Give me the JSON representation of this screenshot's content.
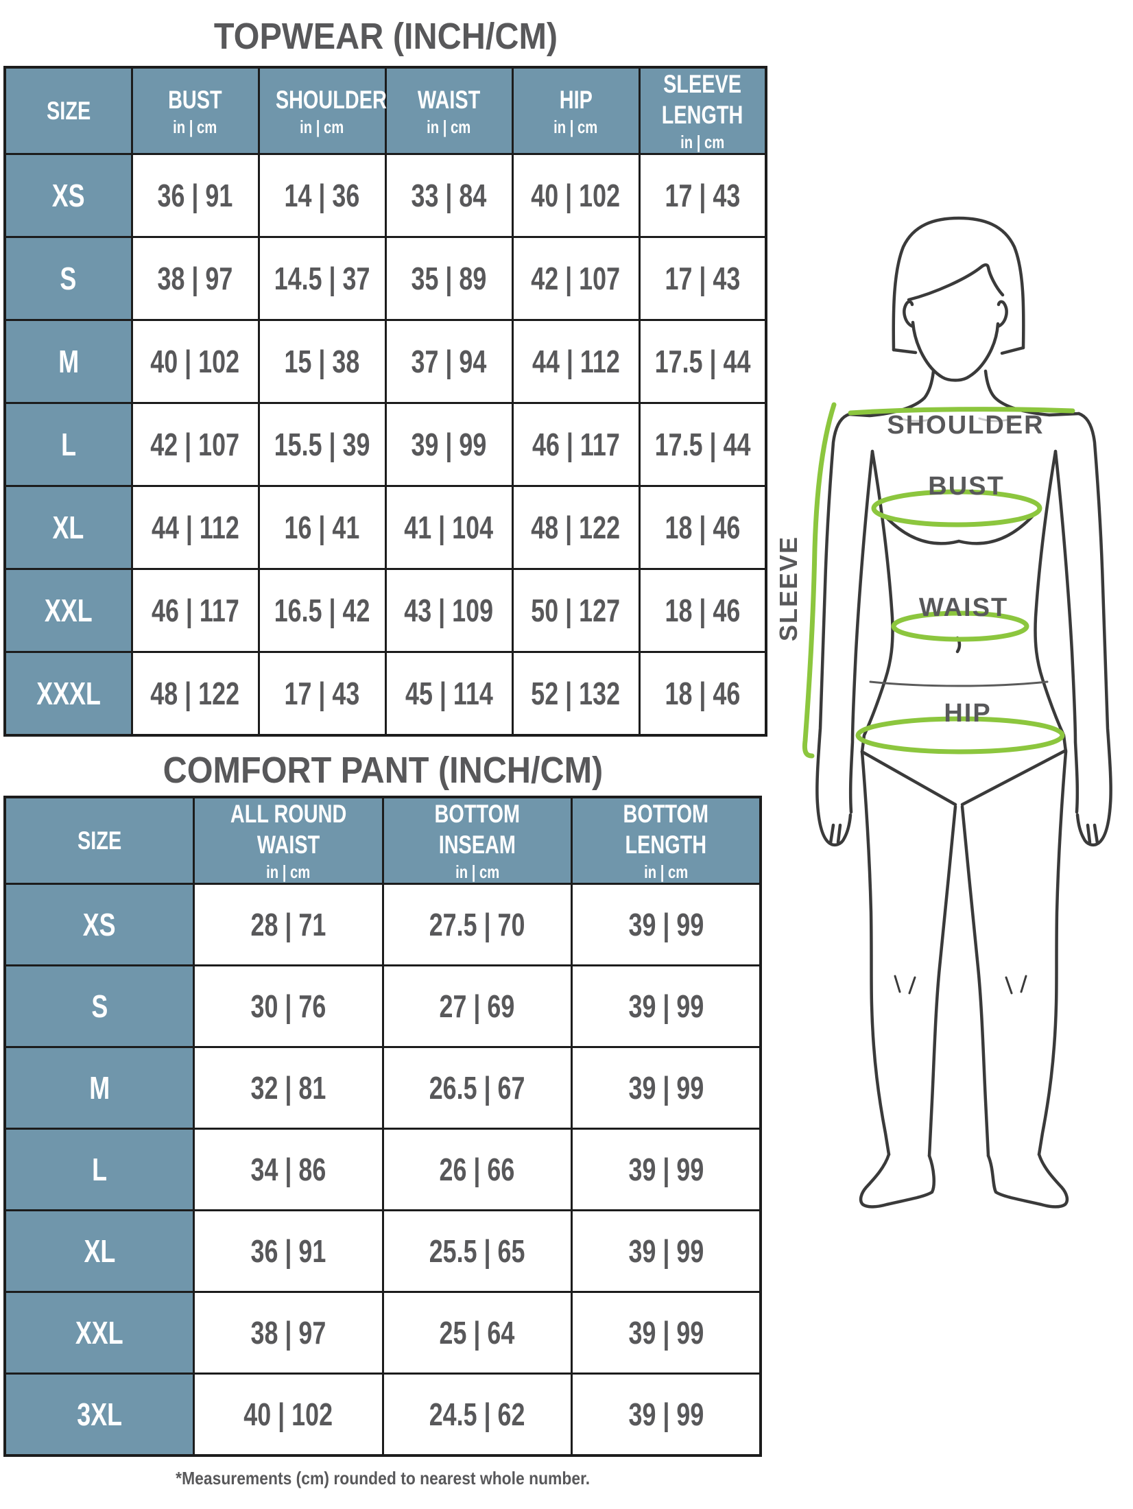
{
  "chart_data": [
    {
      "type": "table",
      "title": "TOPWEAR (INCH/CM)",
      "columns": [
        {
          "label": "SIZE",
          "unit": ""
        },
        {
          "label": "BUST",
          "unit": "in | cm"
        },
        {
          "label": "SHOULDER",
          "unit": "in | cm"
        },
        {
          "label": "WAIST",
          "unit": "in | cm"
        },
        {
          "label": "HIP",
          "unit": "in | cm"
        },
        {
          "label": "SLEEVE\nLENGTH",
          "unit": "in | cm"
        }
      ],
      "rows": [
        [
          "XS",
          "36 | 91",
          "14 | 36",
          "33 | 84",
          "40 | 102",
          "17 | 43"
        ],
        [
          "S",
          "38 | 97",
          "14.5 | 37",
          "35 | 89",
          "42 | 107",
          "17 | 43"
        ],
        [
          "M",
          "40 | 102",
          "15 | 38",
          "37 | 94",
          "44 | 112",
          "17.5 | 44"
        ],
        [
          "L",
          "42 | 107",
          "15.5 | 39",
          "39 | 99",
          "46 | 117",
          "17.5 | 44"
        ],
        [
          "XL",
          "44 | 112",
          "16 | 41",
          "41 | 104",
          "48 | 122",
          "18 | 46"
        ],
        [
          "XXL",
          "46 | 117",
          "16.5 | 42",
          "43 | 109",
          "50 | 127",
          "18 | 46"
        ],
        [
          "XXXL",
          "48 | 122",
          "17 | 43",
          "45 | 114",
          "52 | 132",
          "18 | 46"
        ]
      ]
    },
    {
      "type": "table",
      "title": "COMFORT PANT (INCH/CM)",
      "columns": [
        {
          "label": "SIZE",
          "unit": ""
        },
        {
          "label": "ALL ROUND\nWAIST",
          "unit": "in | cm"
        },
        {
          "label": "BOTTOM\nINSEAM",
          "unit": "in | cm"
        },
        {
          "label": "BOTTOM\nLENGTH",
          "unit": "in | cm"
        }
      ],
      "rows": [
        [
          "XS",
          "28 | 71",
          "27.5 | 70",
          "39 | 99"
        ],
        [
          "S",
          "30 | 76",
          "27 | 69",
          "39 | 99"
        ],
        [
          "M",
          "32 | 81",
          "26.5 | 67",
          "39 | 99"
        ],
        [
          "L",
          "34 | 86",
          "26 | 66",
          "39 | 99"
        ],
        [
          "XL",
          "36 | 91",
          "25.5 | 65",
          "39 | 99"
        ],
        [
          "XXL",
          "38 | 97",
          "25 | 64",
          "39 | 99"
        ],
        [
          "3XL",
          "40 | 102",
          "24.5 | 62",
          "39 | 99"
        ]
      ]
    }
  ],
  "footnote": "*Measurements (cm) rounded to nearest whole number.",
  "figure": {
    "labels": {
      "shoulder": "SHOULDER",
      "bust": "BUST",
      "waist": "WAIST",
      "hip": "HIP",
      "sleeve": "SLEEVE"
    }
  },
  "colors": {
    "header_bg": "#7096ab",
    "border": "#1c1c1c",
    "text_gray": "#58585a",
    "measure_green": "#8cc63e",
    "header_text": "#ffffff"
  }
}
